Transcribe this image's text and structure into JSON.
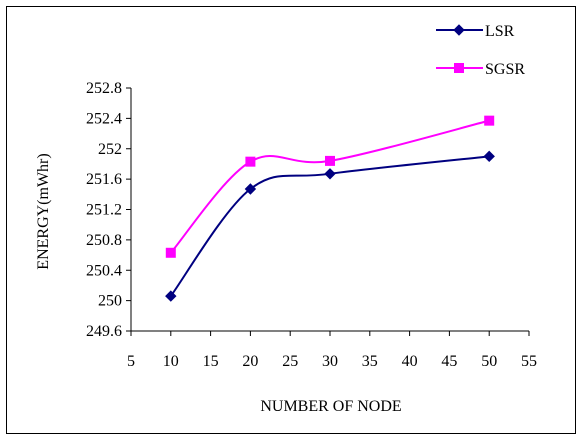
{
  "chart_data": {
    "type": "line",
    "xlabel": "NUMBER OF NODE",
    "ylabel": "ENERGY(mWhr)",
    "xlim": [
      5,
      55
    ],
    "ylim": [
      249.6,
      252.8
    ],
    "x_ticks": [
      "5",
      "10",
      "15",
      "20",
      "25",
      "30",
      "35",
      "40",
      "45",
      "50",
      "55"
    ],
    "y_ticks": [
      "249.6",
      "250",
      "250.4",
      "250.8",
      "251.2",
      "251.6",
      "252",
      "252.4",
      "252.8"
    ],
    "x": [
      10,
      20,
      30,
      50
    ],
    "series": [
      {
        "name": "LSR",
        "color": "#000080",
        "marker": "diamond",
        "values": [
          250.06,
          251.47,
          251.67,
          251.9
        ]
      },
      {
        "name": "SGSR",
        "color": "#ff00ff",
        "marker": "square",
        "values": [
          250.63,
          251.83,
          251.84,
          252.37
        ]
      }
    ],
    "smooth": true,
    "grid": false,
    "legend_position": "top-right"
  }
}
